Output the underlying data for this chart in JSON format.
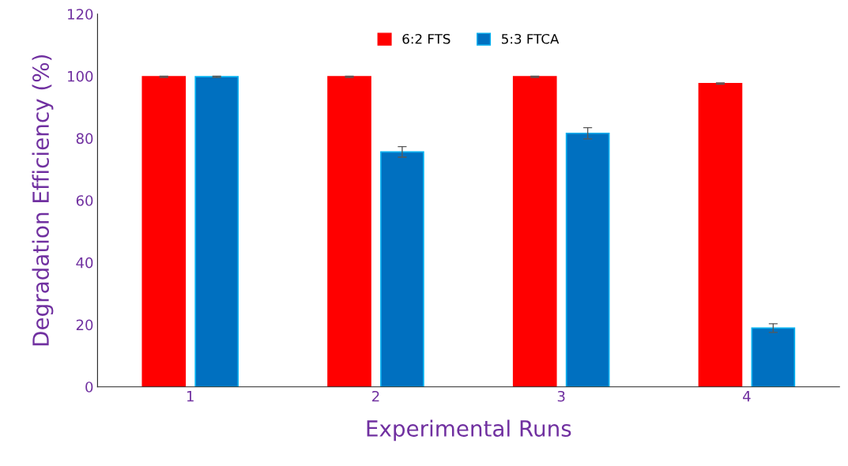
{
  "chart_data": {
    "type": "bar",
    "xlabel": "Experimental Runs",
    "ylabel": "Degradation Efficiency (%)",
    "categories": [
      "1",
      "2",
      "3",
      "4"
    ],
    "series": [
      {
        "name": "6:2 FTS",
        "color": "#ff0000",
        "values": [
          99.8,
          99.8,
          99.8,
          97.6
        ],
        "errors": [
          0.2,
          0.2,
          0.2,
          0.2
        ]
      },
      {
        "name": "5:3 FTCA",
        "color": "#0070c0",
        "values": [
          99.8,
          75.6,
          81.6,
          18.9
        ],
        "errors": [
          0.2,
          1.7,
          1.8,
          1.4
        ]
      }
    ],
    "ylim": [
      0,
      120
    ],
    "yticks": [
      0,
      20,
      40,
      60,
      80,
      100,
      120
    ],
    "grid": false,
    "legend": "top"
  }
}
